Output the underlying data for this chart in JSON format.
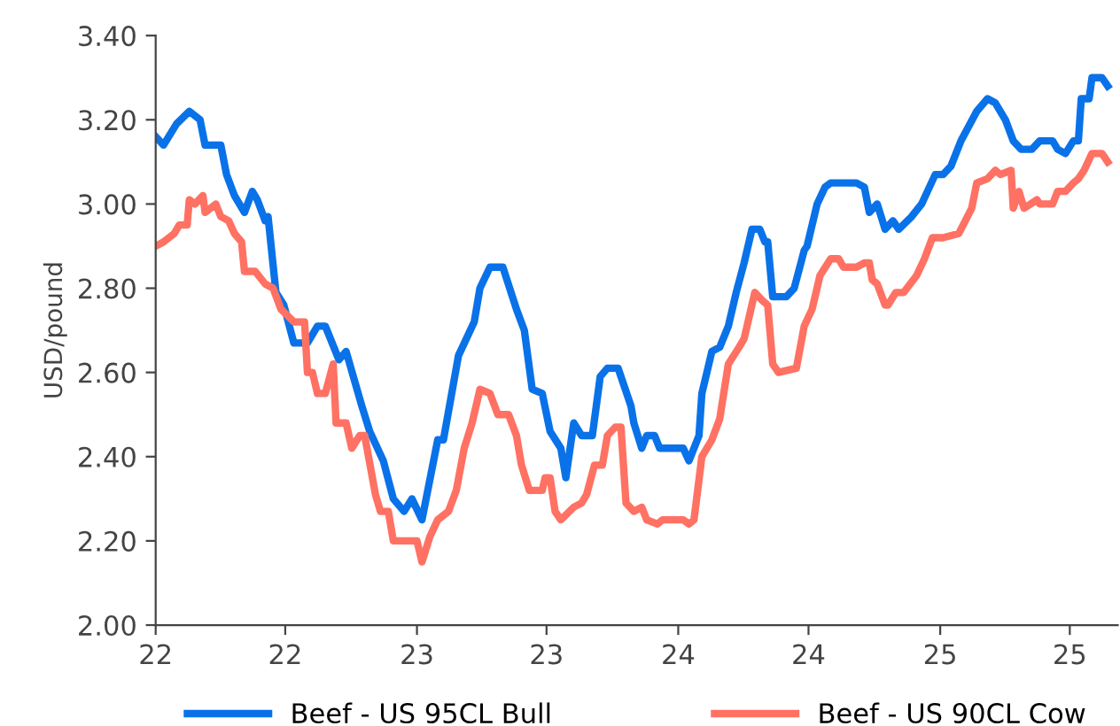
{
  "chart_data": {
    "type": "line",
    "ylabel": "USD/pound",
    "xlim": [
      "2022-01-01",
      "2025-09-06"
    ],
    "ylim": [
      2.0,
      3.4
    ],
    "xticks": [
      {
        "value": "2022-01-01",
        "label": "22"
      },
      {
        "value": "2022-07-01",
        "label": "22"
      },
      {
        "value": "2023-01-01",
        "label": "23"
      },
      {
        "value": "2023-07-01",
        "label": "23"
      },
      {
        "value": "2024-01-01",
        "label": "24"
      },
      {
        "value": "2024-07-01",
        "label": "24"
      },
      {
        "value": "2025-01-01",
        "label": "25"
      },
      {
        "value": "2025-07-01",
        "label": "25"
      }
    ],
    "yticks": [
      {
        "value": 2.0,
        "label": "2.00"
      },
      {
        "value": 2.2,
        "label": "2.20"
      },
      {
        "value": 2.4,
        "label": "2.40"
      },
      {
        "value": 2.6,
        "label": "2.60"
      },
      {
        "value": 2.8,
        "label": "2.80"
      },
      {
        "value": 3.0,
        "label": "3.00"
      },
      {
        "value": 3.2,
        "label": "3.20"
      },
      {
        "value": 3.4,
        "label": "3.40"
      }
    ],
    "grid": false,
    "legend": "bottom",
    "marker": "none",
    "line_style": "solid",
    "series": [
      {
        "name": "Beef - US 95CL Bull",
        "color": "#0a72e8",
        "x": [
          "2022-01-01",
          "2022-01-12",
          "2022-01-30",
          "2022-02-17",
          "2022-03-04",
          "2022-03-11",
          "2022-04-02",
          "2022-04-10",
          "2022-04-21",
          "2022-05-05",
          "2022-05-16",
          "2022-05-23",
          "2022-06-03",
          "2022-06-07",
          "2022-06-18",
          "2022-06-29",
          "2022-07-13",
          "2022-08-01",
          "2022-08-15",
          "2022-08-26",
          "2022-09-14",
          "2022-09-24",
          "2022-10-16",
          "2022-10-27",
          "2022-11-15",
          "2022-11-29",
          "2022-12-14",
          "2022-12-25",
          "2023-01-08",
          "2023-01-30",
          "2023-02-07",
          "2023-02-28",
          "2023-03-22",
          "2023-03-30",
          "2023-04-13",
          "2023-05-01",
          "2023-05-20",
          "2023-05-31",
          "2023-06-11",
          "2023-06-25",
          "2023-07-06",
          "2023-07-21",
          "2023-07-28",
          "2023-08-08",
          "2023-08-19",
          "2023-09-03",
          "2023-09-14",
          "2023-09-24",
          "2023-10-09",
          "2023-10-27",
          "2023-10-31",
          "2023-11-11",
          "2023-11-18",
          "2023-11-29",
          "2023-12-06",
          "2024-01-08",
          "2024-01-16",
          "2024-01-30",
          "2024-02-03",
          "2024-02-17",
          "2024-02-28",
          "2024-03-11",
          "2024-03-22",
          "2024-04-02",
          "2024-04-13",
          "2024-04-24",
          "2024-05-01",
          "2024-05-05",
          "2024-05-12",
          "2024-05-31",
          "2024-06-11",
          "2024-06-25",
          "2024-06-29",
          "2024-07-13",
          "2024-07-24",
          "2024-08-01",
          "2024-09-06",
          "2024-09-17",
          "2024-09-24",
          "2024-10-05",
          "2024-10-16",
          "2024-10-27",
          "2024-11-04",
          "2024-11-22",
          "2024-12-06",
          "2024-12-25",
          "2025-01-05",
          "2025-01-16",
          "2025-01-30",
          "2025-02-21",
          "2025-03-08",
          "2025-03-19",
          "2025-04-02",
          "2025-04-13",
          "2025-04-24",
          "2025-05-09",
          "2025-05-20",
          "2025-06-07",
          "2025-06-14",
          "2025-06-25",
          "2025-07-06",
          "2025-07-13",
          "2025-07-17",
          "2025-07-28",
          "2025-08-01",
          "2025-08-15",
          "2025-08-23"
        ],
        "values": [
          3.16,
          3.14,
          3.19,
          3.22,
          3.2,
          3.14,
          3.14,
          3.07,
          3.02,
          2.98,
          3.03,
          3.01,
          2.96,
          2.97,
          2.79,
          2.76,
          2.67,
          2.67,
          2.71,
          2.71,
          2.63,
          2.65,
          2.52,
          2.46,
          2.39,
          2.3,
          2.27,
          2.3,
          2.25,
          2.44,
          2.44,
          2.64,
          2.72,
          2.8,
          2.85,
          2.85,
          2.75,
          2.7,
          2.56,
          2.55,
          2.46,
          2.42,
          2.35,
          2.48,
          2.45,
          2.45,
          2.59,
          2.61,
          2.61,
          2.52,
          2.48,
          2.42,
          2.45,
          2.45,
          2.42,
          2.42,
          2.39,
          2.45,
          2.55,
          2.65,
          2.66,
          2.71,
          2.79,
          2.86,
          2.94,
          2.94,
          2.91,
          2.91,
          2.78,
          2.78,
          2.8,
          2.89,
          2.9,
          3.0,
          3.04,
          3.05,
          3.05,
          3.04,
          2.98,
          3.0,
          2.94,
          2.96,
          2.94,
          2.97,
          3.0,
          3.07,
          3.07,
          3.09,
          3.15,
          3.22,
          3.25,
          3.24,
          3.2,
          3.15,
          3.13,
          3.13,
          3.15,
          3.15,
          3.13,
          3.12,
          3.15,
          3.15,
          3.25,
          3.25,
          3.3,
          3.3,
          3.28
        ]
      },
      {
        "name": "Beef - US 90CL Cow",
        "color": "#ff7163",
        "x": [
          "2022-01-01",
          "2022-01-12",
          "2022-01-27",
          "2022-02-03",
          "2022-02-14",
          "2022-02-17",
          "2022-02-25",
          "2022-03-08",
          "2022-03-11",
          "2022-03-26",
          "2022-04-02",
          "2022-04-13",
          "2022-04-21",
          "2022-05-01",
          "2022-05-05",
          "2022-05-20",
          "2022-06-03",
          "2022-06-14",
          "2022-06-25",
          "2022-07-13",
          "2022-07-28",
          "2022-08-01",
          "2022-08-08",
          "2022-08-15",
          "2022-08-26",
          "2022-09-06",
          "2022-09-10",
          "2022-09-24",
          "2022-10-02",
          "2022-10-13",
          "2022-10-20",
          "2022-11-04",
          "2022-11-11",
          "2022-11-22",
          "2022-11-29",
          "2023-01-01",
          "2023-01-08",
          "2023-01-19",
          "2023-01-30",
          "2023-02-14",
          "2023-02-25",
          "2023-03-08",
          "2023-03-19",
          "2023-03-30",
          "2023-04-13",
          "2023-04-24",
          "2023-05-09",
          "2023-05-20",
          "2023-05-27",
          "2023-06-07",
          "2023-06-25",
          "2023-06-29",
          "2023-07-06",
          "2023-07-13",
          "2023-07-21",
          "2023-08-08",
          "2023-08-19",
          "2023-08-26",
          "2023-09-06",
          "2023-09-17",
          "2023-09-24",
          "2023-10-05",
          "2023-10-13",
          "2023-10-20",
          "2023-10-31",
          "2023-11-11",
          "2023-11-18",
          "2023-12-03",
          "2023-12-10",
          "2024-01-08",
          "2024-01-16",
          "2024-01-23",
          "2024-02-03",
          "2024-02-17",
          "2024-02-28",
          "2024-03-11",
          "2024-03-26",
          "2024-04-02",
          "2024-04-17",
          "2024-04-28",
          "2024-05-05",
          "2024-05-12",
          "2024-05-20",
          "2024-06-14",
          "2024-06-25",
          "2024-07-06",
          "2024-07-17",
          "2024-08-01",
          "2024-08-12",
          "2024-08-19",
          "2024-09-06",
          "2024-09-17",
          "2024-09-24",
          "2024-09-28",
          "2024-10-05",
          "2024-10-16",
          "2024-10-20",
          "2024-10-31",
          "2024-11-11",
          "2024-11-29",
          "2024-12-10",
          "2024-12-21",
          "2025-01-05",
          "2025-01-27",
          "2025-02-14",
          "2025-02-21",
          "2025-03-08",
          "2025-03-19",
          "2025-03-26",
          "2025-04-10",
          "2025-04-13",
          "2025-04-21",
          "2025-04-28",
          "2025-05-16",
          "2025-05-20",
          "2025-06-07",
          "2025-06-14",
          "2025-06-25",
          "2025-07-06",
          "2025-07-13",
          "2025-07-21",
          "2025-08-01",
          "2025-08-15",
          "2025-08-23"
        ],
        "values": [
          2.9,
          2.91,
          2.93,
          2.95,
          2.95,
          3.01,
          3.0,
          3.02,
          2.98,
          3.0,
          2.97,
          2.96,
          2.93,
          2.91,
          2.84,
          2.84,
          2.81,
          2.8,
          2.75,
          2.72,
          2.72,
          2.6,
          2.6,
          2.55,
          2.55,
          2.62,
          2.48,
          2.48,
          2.42,
          2.45,
          2.45,
          2.31,
          2.27,
          2.27,
          2.2,
          2.2,
          2.15,
          2.21,
          2.25,
          2.27,
          2.32,
          2.42,
          2.48,
          2.56,
          2.55,
          2.5,
          2.5,
          2.45,
          2.38,
          2.32,
          2.32,
          2.35,
          2.35,
          2.27,
          2.25,
          2.28,
          2.29,
          2.31,
          2.38,
          2.38,
          2.45,
          2.47,
          2.47,
          2.29,
          2.27,
          2.28,
          2.25,
          2.24,
          2.25,
          2.25,
          2.24,
          2.25,
          2.4,
          2.44,
          2.49,
          2.62,
          2.66,
          2.68,
          2.79,
          2.77,
          2.76,
          2.62,
          2.6,
          2.61,
          2.71,
          2.75,
          2.83,
          2.87,
          2.87,
          2.85,
          2.85,
          2.86,
          2.86,
          2.82,
          2.81,
          2.76,
          2.76,
          2.79,
          2.79,
          2.83,
          2.87,
          2.92,
          2.92,
          2.93,
          2.99,
          3.05,
          3.06,
          3.08,
          3.07,
          3.08,
          2.99,
          3.03,
          2.99,
          3.01,
          3.0,
          3.0,
          3.03,
          3.03,
          3.05,
          3.06,
          3.08,
          3.12,
          3.12,
          3.1
        ]
      }
    ]
  }
}
